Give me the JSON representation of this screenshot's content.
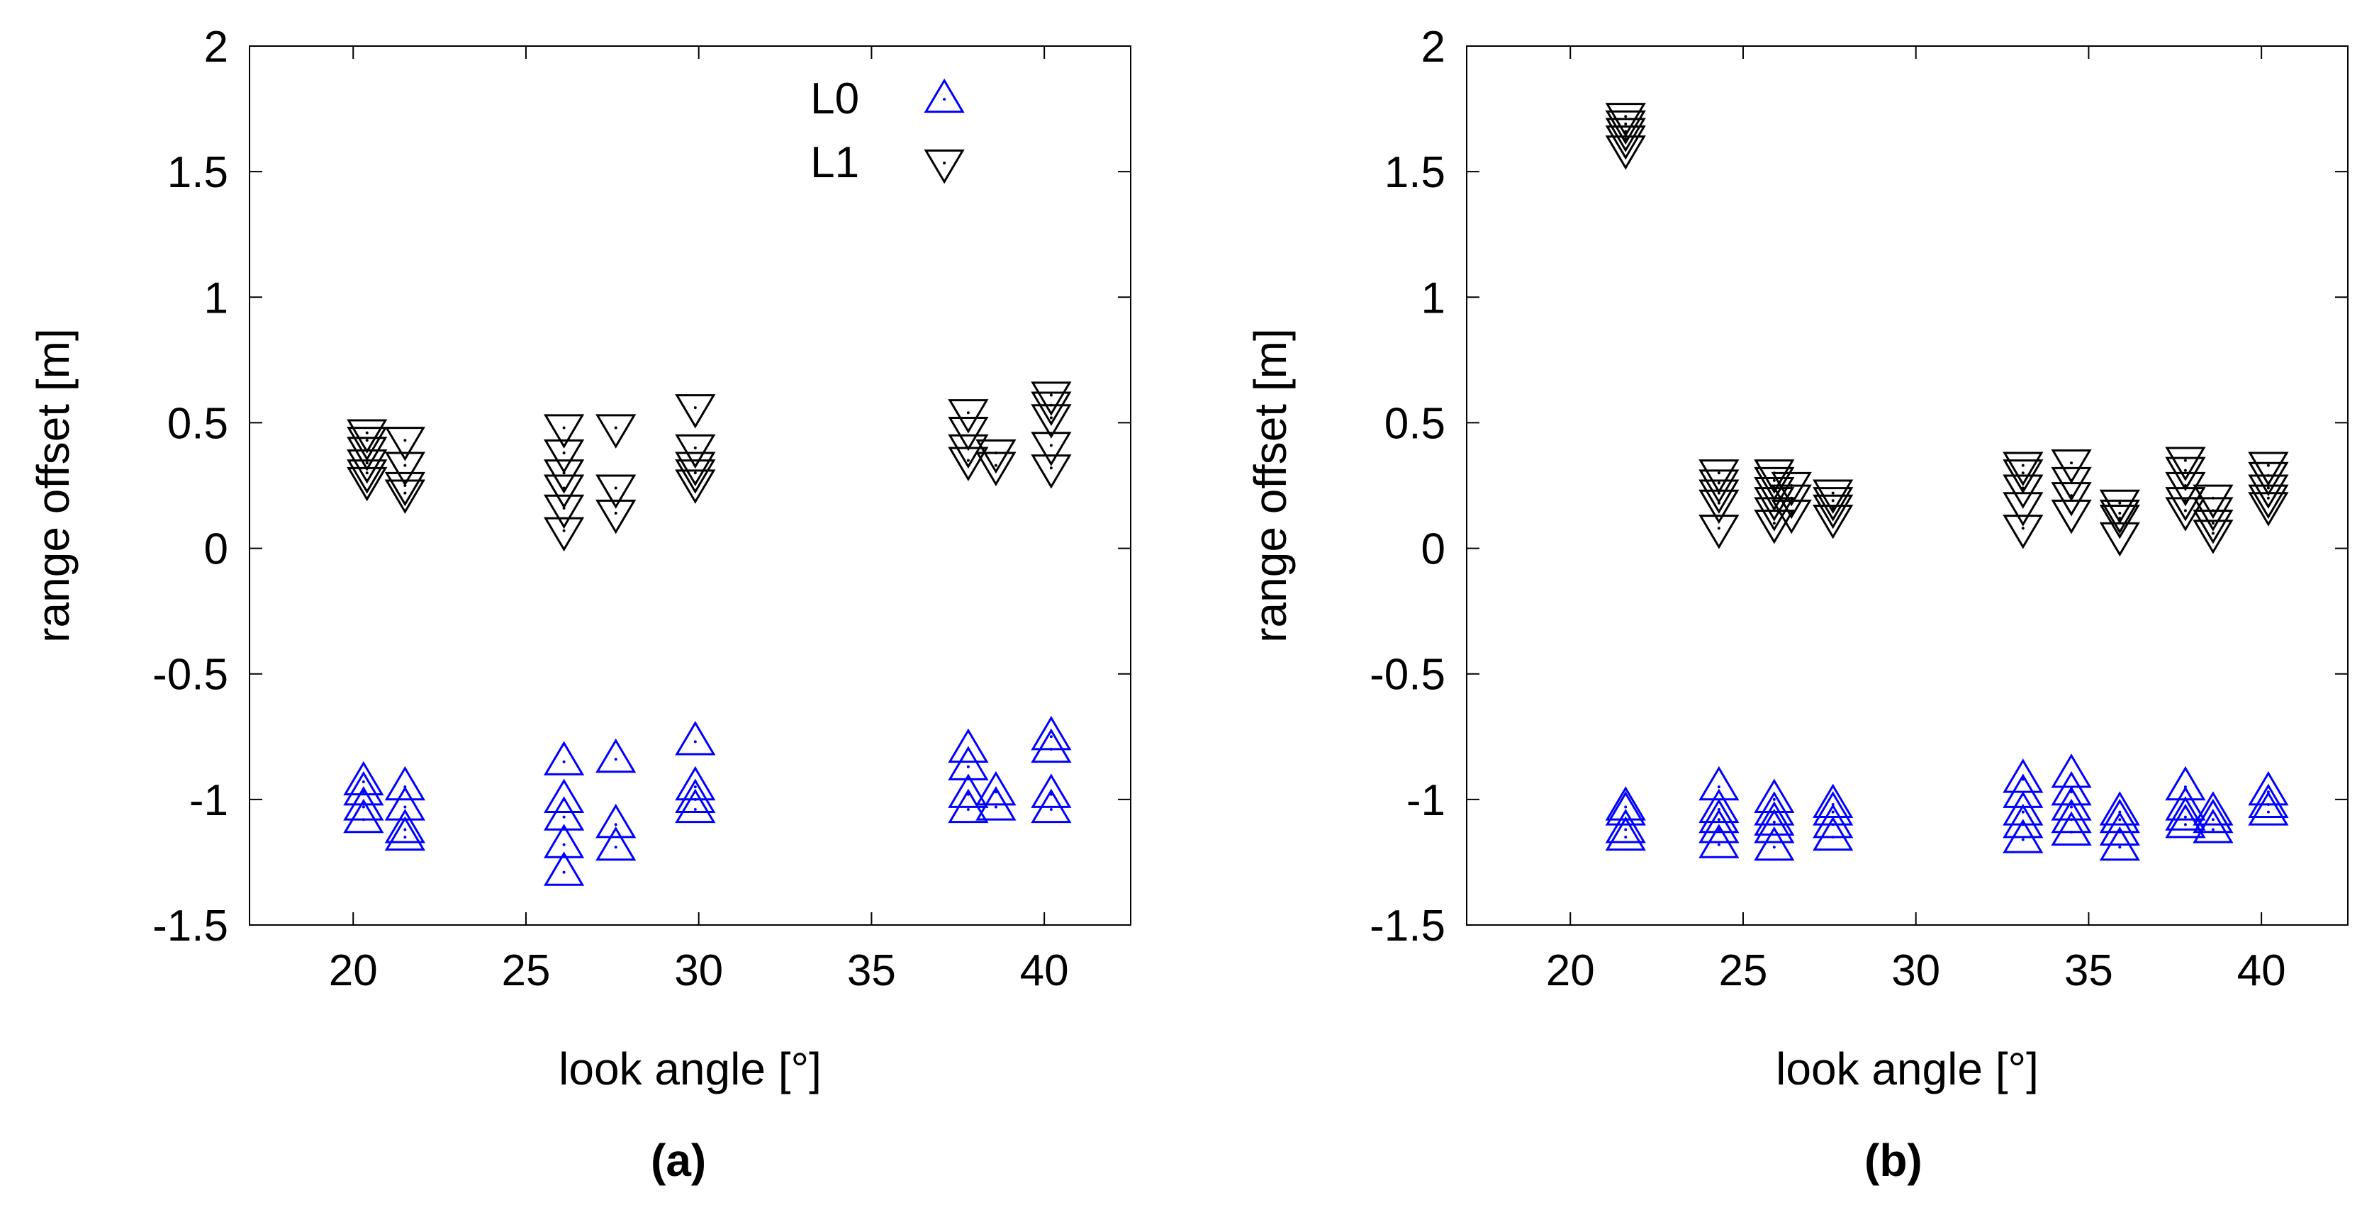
{
  "chart_data": [
    {
      "type": "scatter",
      "panel_label": "(a)",
      "xlabel": "look angle [°]",
      "ylabel": "range offset [m]",
      "xlim": [
        17,
        42.5
      ],
      "ylim": [
        -1.5,
        2
      ],
      "xticks": [
        "20",
        "25",
        "30",
        "35",
        "40"
      ],
      "yticks": [
        "2",
        "1.5",
        "1",
        "0.5",
        "0",
        "-0.5",
        "-1",
        "-1.5"
      ],
      "grid": false,
      "legend": "top-right",
      "series": [
        {
          "name": "L0",
          "marker": "triangle-up",
          "color": "#0000ff",
          "points": [
            {
              "x": 20.3,
              "y": -0.93
            },
            {
              "x": 20.3,
              "y": -0.97
            },
            {
              "x": 20.3,
              "y": -1.03
            },
            {
              "x": 20.3,
              "y": -1.08
            },
            {
              "x": 21.5,
              "y": -0.95
            },
            {
              "x": 21.5,
              "y": -1.03
            },
            {
              "x": 21.5,
              "y": -1.12
            },
            {
              "x": 21.5,
              "y": -1.15
            },
            {
              "x": 26.1,
              "y": -0.85
            },
            {
              "x": 26.1,
              "y": -1.0
            },
            {
              "x": 26.1,
              "y": -1.07
            },
            {
              "x": 26.1,
              "y": -1.18
            },
            {
              "x": 26.1,
              "y": -1.29
            },
            {
              "x": 27.6,
              "y": -0.84
            },
            {
              "x": 27.6,
              "y": -1.1
            },
            {
              "x": 27.6,
              "y": -1.19
            },
            {
              "x": 29.9,
              "y": -0.77
            },
            {
              "x": 29.9,
              "y": -0.95
            },
            {
              "x": 29.9,
              "y": -1.0
            },
            {
              "x": 29.9,
              "y": -1.04
            },
            {
              "x": 37.8,
              "y": -0.8
            },
            {
              "x": 37.8,
              "y": -0.87
            },
            {
              "x": 37.8,
              "y": -0.98
            },
            {
              "x": 37.8,
              "y": -1.04
            },
            {
              "x": 38.6,
              "y": -0.97
            },
            {
              "x": 38.6,
              "y": -1.03
            },
            {
              "x": 40.2,
              "y": -0.75
            },
            {
              "x": 40.2,
              "y": -0.8
            },
            {
              "x": 40.2,
              "y": -0.98
            },
            {
              "x": 40.2,
              "y": -1.04
            }
          ]
        },
        {
          "name": "L1",
          "marker": "triangle-down",
          "color": "#000000",
          "points": [
            {
              "x": 20.4,
              "y": 0.46
            },
            {
              "x": 20.4,
              "y": 0.43
            },
            {
              "x": 20.4,
              "y": 0.39
            },
            {
              "x": 20.4,
              "y": 0.34
            },
            {
              "x": 20.4,
              "y": 0.3
            },
            {
              "x": 20.4,
              "y": 0.27
            },
            {
              "x": 21.5,
              "y": 0.43
            },
            {
              "x": 21.5,
              "y": 0.33
            },
            {
              "x": 21.5,
              "y": 0.25
            },
            {
              "x": 21.5,
              "y": 0.22
            },
            {
              "x": 26.1,
              "y": 0.48
            },
            {
              "x": 26.1,
              "y": 0.38
            },
            {
              "x": 26.1,
              "y": 0.3
            },
            {
              "x": 26.1,
              "y": 0.24
            },
            {
              "x": 26.1,
              "y": 0.16
            },
            {
              "x": 26.1,
              "y": 0.07
            },
            {
              "x": 27.6,
              "y": 0.48
            },
            {
              "x": 27.6,
              "y": 0.24
            },
            {
              "x": 27.6,
              "y": 0.14
            },
            {
              "x": 29.9,
              "y": 0.56
            },
            {
              "x": 29.9,
              "y": 0.4
            },
            {
              "x": 29.9,
              "y": 0.33
            },
            {
              "x": 29.9,
              "y": 0.3
            },
            {
              "x": 29.9,
              "y": 0.26
            },
            {
              "x": 37.8,
              "y": 0.54
            },
            {
              "x": 37.8,
              "y": 0.47
            },
            {
              "x": 37.8,
              "y": 0.4
            },
            {
              "x": 37.8,
              "y": 0.35
            },
            {
              "x": 38.6,
              "y": 0.38
            },
            {
              "x": 38.6,
              "y": 0.33
            },
            {
              "x": 40.2,
              "y": 0.61
            },
            {
              "x": 40.2,
              "y": 0.57
            },
            {
              "x": 40.2,
              "y": 0.52
            },
            {
              "x": 40.2,
              "y": 0.41
            },
            {
              "x": 40.2,
              "y": 0.32
            }
          ]
        }
      ]
    },
    {
      "type": "scatter",
      "panel_label": "(b)",
      "xlabel": "look angle [°]",
      "ylabel": "range offset [m]",
      "xlim": [
        17,
        42.5
      ],
      "ylim": [
        -1.5,
        2
      ],
      "xticks": [
        "20",
        "25",
        "30",
        "35",
        "40"
      ],
      "yticks": [
        "2",
        "1.5",
        "1",
        "0.5",
        "0",
        "-0.5",
        "-1",
        "-1.5"
      ],
      "grid": false,
      "series": [
        {
          "name": "L0",
          "marker": "triangle-up",
          "color": "#0000ff",
          "points": [
            {
              "x": 21.6,
              "y": -1.03
            },
            {
              "x": 21.6,
              "y": -1.05
            },
            {
              "x": 21.6,
              "y": -1.12
            },
            {
              "x": 21.6,
              "y": -1.15
            },
            {
              "x": 24.3,
              "y": -0.95
            },
            {
              "x": 24.3,
              "y": -1.04
            },
            {
              "x": 24.3,
              "y": -1.08
            },
            {
              "x": 24.3,
              "y": -1.12
            },
            {
              "x": 24.3,
              "y": -1.18
            },
            {
              "x": 25.9,
              "y": -1.0
            },
            {
              "x": 25.9,
              "y": -1.05
            },
            {
              "x": 25.9,
              "y": -1.09
            },
            {
              "x": 25.9,
              "y": -1.12
            },
            {
              "x": 25.9,
              "y": -1.19
            },
            {
              "x": 27.6,
              "y": -1.02
            },
            {
              "x": 27.6,
              "y": -1.05
            },
            {
              "x": 27.6,
              "y": -1.1
            },
            {
              "x": 27.6,
              "y": -1.15
            },
            {
              "x": 33.1,
              "y": -0.92
            },
            {
              "x": 33.1,
              "y": -0.98
            },
            {
              "x": 33.1,
              "y": -1.05
            },
            {
              "x": 33.1,
              "y": -1.1
            },
            {
              "x": 33.1,
              "y": -1.16
            },
            {
              "x": 34.5,
              "y": -0.9
            },
            {
              "x": 34.5,
              "y": -0.97
            },
            {
              "x": 34.5,
              "y": -1.03
            },
            {
              "x": 34.5,
              "y": -1.08
            },
            {
              "x": 34.5,
              "y": -1.13
            },
            {
              "x": 35.9,
              "y": -1.05
            },
            {
              "x": 35.9,
              "y": -1.08
            },
            {
              "x": 35.9,
              "y": -1.13
            },
            {
              "x": 35.9,
              "y": -1.19
            },
            {
              "x": 37.8,
              "y": -0.95
            },
            {
              "x": 37.8,
              "y": -1.03
            },
            {
              "x": 37.8,
              "y": -1.07
            },
            {
              "x": 37.8,
              "y": -1.1
            },
            {
              "x": 38.6,
              "y": -1.05
            },
            {
              "x": 38.6,
              "y": -1.08
            },
            {
              "x": 38.6,
              "y": -1.12
            },
            {
              "x": 40.2,
              "y": -0.97
            },
            {
              "x": 40.2,
              "y": -1.02
            },
            {
              "x": 40.2,
              "y": -1.05
            }
          ]
        },
        {
          "name": "L1",
          "marker": "triangle-down",
          "color": "#000000",
          "points": [
            {
              "x": 21.6,
              "y": 1.72
            },
            {
              "x": 21.6,
              "y": 1.69
            },
            {
              "x": 21.6,
              "y": 1.66
            },
            {
              "x": 21.6,
              "y": 1.63
            },
            {
              "x": 21.6,
              "y": 1.59
            },
            {
              "x": 24.3,
              "y": 0.3
            },
            {
              "x": 24.3,
              "y": 0.26
            },
            {
              "x": 24.3,
              "y": 0.22
            },
            {
              "x": 24.3,
              "y": 0.18
            },
            {
              "x": 24.3,
              "y": 0.08
            },
            {
              "x": 25.9,
              "y": 0.3
            },
            {
              "x": 25.9,
              "y": 0.27
            },
            {
              "x": 25.9,
              "y": 0.23
            },
            {
              "x": 25.9,
              "y": 0.19
            },
            {
              "x": 25.9,
              "y": 0.15
            },
            {
              "x": 25.9,
              "y": 0.1
            },
            {
              "x": 26.4,
              "y": 0.25
            },
            {
              "x": 26.4,
              "y": 0.2
            },
            {
              "x": 26.4,
              "y": 0.14
            },
            {
              "x": 27.6,
              "y": 0.22
            },
            {
              "x": 27.6,
              "y": 0.19
            },
            {
              "x": 27.6,
              "y": 0.16
            },
            {
              "x": 27.6,
              "y": 0.12
            },
            {
              "x": 33.1,
              "y": 0.33
            },
            {
              "x": 33.1,
              "y": 0.3
            },
            {
              "x": 33.1,
              "y": 0.24
            },
            {
              "x": 33.1,
              "y": 0.17
            },
            {
              "x": 33.1,
              "y": 0.08
            },
            {
              "x": 34.5,
              "y": 0.34
            },
            {
              "x": 34.5,
              "y": 0.27
            },
            {
              "x": 34.5,
              "y": 0.21
            },
            {
              "x": 34.5,
              "y": 0.14
            },
            {
              "x": 35.9,
              "y": 0.18
            },
            {
              "x": 35.9,
              "y": 0.14
            },
            {
              "x": 35.9,
              "y": 0.12
            },
            {
              "x": 35.9,
              "y": 0.05
            },
            {
              "x": 37.8,
              "y": 0.35
            },
            {
              "x": 37.8,
              "y": 0.31
            },
            {
              "x": 37.8,
              "y": 0.25
            },
            {
              "x": 37.8,
              "y": 0.19
            },
            {
              "x": 37.8,
              "y": 0.15
            },
            {
              "x": 38.6,
              "y": 0.2
            },
            {
              "x": 38.6,
              "y": 0.15
            },
            {
              "x": 38.6,
              "y": 0.1
            },
            {
              "x": 38.6,
              "y": 0.06
            },
            {
              "x": 40.2,
              "y": 0.33
            },
            {
              "x": 40.2,
              "y": 0.29
            },
            {
              "x": 40.2,
              "y": 0.24
            },
            {
              "x": 40.2,
              "y": 0.2
            },
            {
              "x": 40.2,
              "y": 0.17
            }
          ]
        }
      ]
    }
  ]
}
